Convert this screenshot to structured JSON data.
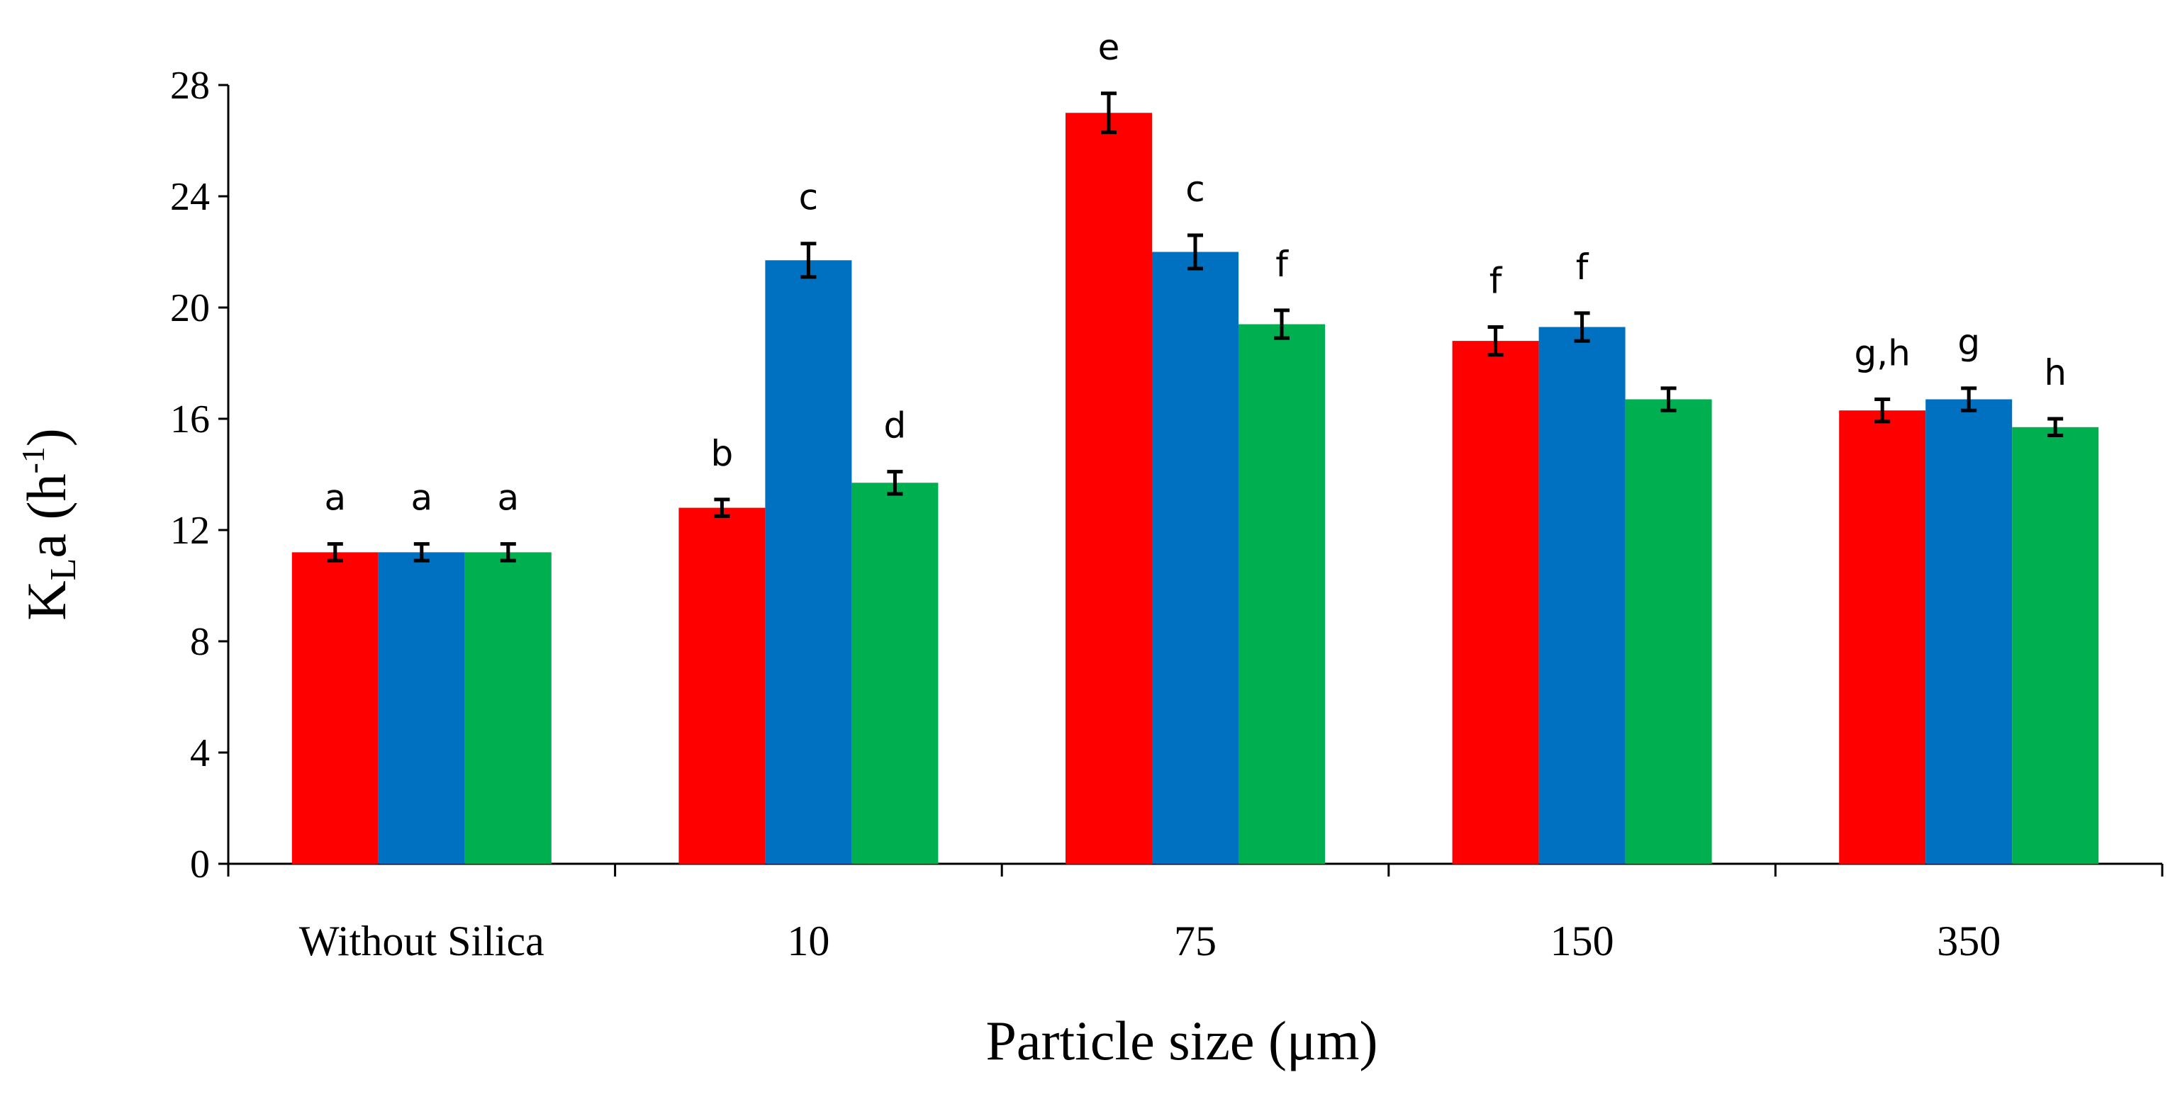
{
  "chart_data": {
    "type": "bar",
    "title": "",
    "xlabel": "Particle size (μm)",
    "ylabel": {
      "base": "K",
      "sub": "L",
      "rest": "a (h",
      "sup": "-1",
      "close": ")"
    },
    "ylim": [
      0,
      28
    ],
    "yticks": [
      0,
      4,
      8,
      12,
      16,
      20,
      24,
      28
    ],
    "categories": [
      "Without Silica",
      "10",
      "75",
      "150",
      "350"
    ],
    "series": [
      {
        "name": "series-red",
        "color": "#ff0000",
        "values": [
          11.2,
          12.8,
          27.0,
          18.8,
          16.3
        ],
        "errors": [
          0.3,
          0.3,
          0.7,
          0.5,
          0.4
        ],
        "labels": [
          "a",
          "b",
          "e",
          "f",
          "g,h"
        ]
      },
      {
        "name": "series-blue",
        "color": "#0070c0",
        "values": [
          11.2,
          21.7,
          22.0,
          19.3,
          16.7
        ],
        "errors": [
          0.3,
          0.6,
          0.6,
          0.5,
          0.4
        ],
        "labels": [
          "a",
          "c",
          "c",
          "f",
          "g"
        ]
      },
      {
        "name": "series-green",
        "color": "#00b050",
        "values": [
          11.2,
          13.7,
          19.4,
          16.7,
          15.7
        ],
        "errors": [
          0.3,
          0.4,
          0.5,
          0.4,
          0.3
        ],
        "labels": [
          "a",
          "d",
          "f",
          "",
          "h"
        ]
      }
    ]
  }
}
